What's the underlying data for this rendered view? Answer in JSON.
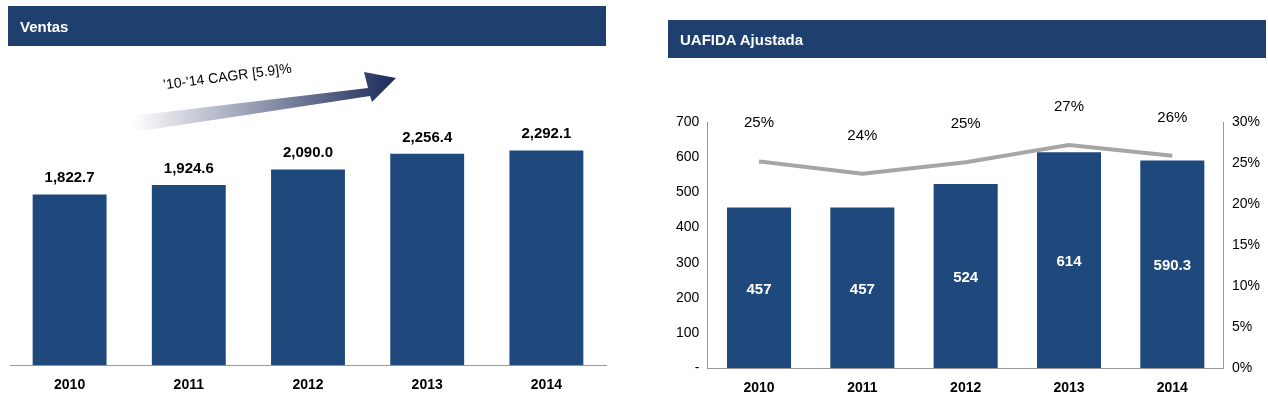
{
  "chart_data": [
    {
      "type": "bar",
      "title": "Ventas",
      "categories": [
        "2010",
        "2011",
        "2012",
        "2013",
        "2014"
      ],
      "values": [
        1822.7,
        1924.6,
        2090.0,
        2256.4,
        2292.1
      ],
      "value_labels": [
        "1,822.7",
        "1,924.6",
        "2,090.0",
        "2,256.4",
        "2,292.1"
      ],
      "color": "#1f497d",
      "tick_labels": "x",
      "annotations": [
        "'10-'14 CAGR [5.9]%"
      ],
      "legend": false
    },
    {
      "type": "bar",
      "title": "UAFIDA Ajustada",
      "categories": [
        "2010",
        "2011",
        "2012",
        "2013",
        "2014"
      ],
      "legend": false,
      "series": [
        {
          "type": "bar",
          "color": "#1f497d",
          "values": [
            457,
            457,
            524,
            614,
            590.3
          ],
          "value_labels": [
            "457",
            "457",
            "524",
            "614",
            "590.3"
          ]
        },
        {
          "type": "line",
          "axis": "y2",
          "color": "#a6a6a6",
          "values": [
            25.2,
            23.7,
            25.1,
            27.2,
            25.9
          ],
          "value_labels": [
            "25%",
            "24%",
            "25%",
            "27%",
            "26%"
          ]
        }
      ],
      "ylim": [
        0,
        700
      ],
      "yticks": [
        {
          "value": 0,
          "label": "-"
        },
        100,
        200,
        300,
        400,
        500,
        600,
        700
      ],
      "y2lim": [
        0,
        30
      ],
      "y2ticks": [
        {
          "value": 0,
          "label": "0%"
        },
        {
          "value": 5,
          "label": "5%"
        },
        {
          "value": 10,
          "label": "10%"
        },
        {
          "value": 15,
          "label": "15%"
        },
        {
          "value": 20,
          "label": "20%"
        },
        {
          "value": 25,
          "label": "25%"
        },
        {
          "value": 30,
          "label": "30%"
        }
      ]
    }
  ]
}
